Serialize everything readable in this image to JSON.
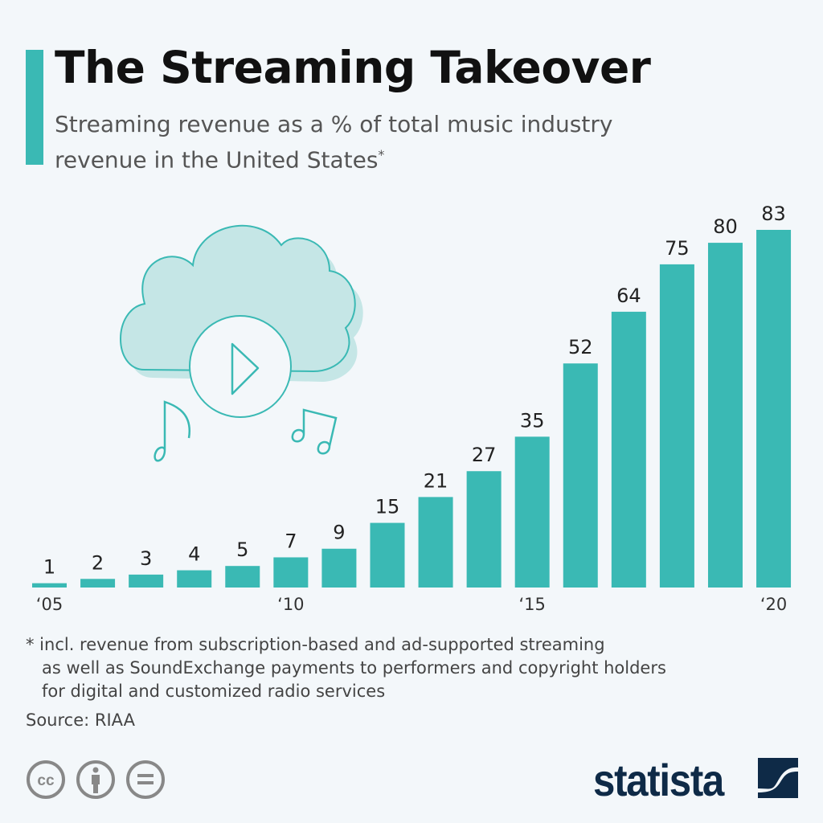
{
  "title": "The Streaming Takeover",
  "subtitle": "Streaming revenue as a % of total music industry revenue in the United States",
  "subtitle_marker": "*",
  "footnote": [
    "* incl. revenue from subscription-based and ad-supported streaming",
    "as well as SoundExchange payments to performers and copyright holders",
    "for digital and customized radio services"
  ],
  "source": "Source: RIAA",
  "brand": "statista",
  "license_icons": [
    "cc-icon",
    "attribution-icon",
    "no-derivatives-icon"
  ],
  "colors": {
    "accent": "#3ab9b4",
    "background": "#f3f7fa",
    "brand": "#0e2a47",
    "illustration": "#c5e6e6"
  },
  "chart_data": {
    "type": "bar",
    "categories": [
      "2005",
      "2006",
      "2007",
      "2008",
      "2009",
      "2010",
      "2011",
      "2012",
      "2013",
      "2014",
      "2015",
      "2016",
      "2017",
      "2018",
      "2019",
      "2020"
    ],
    "values": [
      1,
      2,
      3,
      4,
      5,
      7,
      9,
      15,
      21,
      27,
      35,
      52,
      64,
      75,
      80,
      83
    ],
    "tick_labels": {
      "2005": "‘05",
      "2010": "‘10",
      "2015": "‘15",
      "2020": "‘20"
    },
    "ylabel": "",
    "xlabel": "",
    "ylim": [
      0,
      83
    ],
    "grid": false,
    "data_labels": true
  }
}
